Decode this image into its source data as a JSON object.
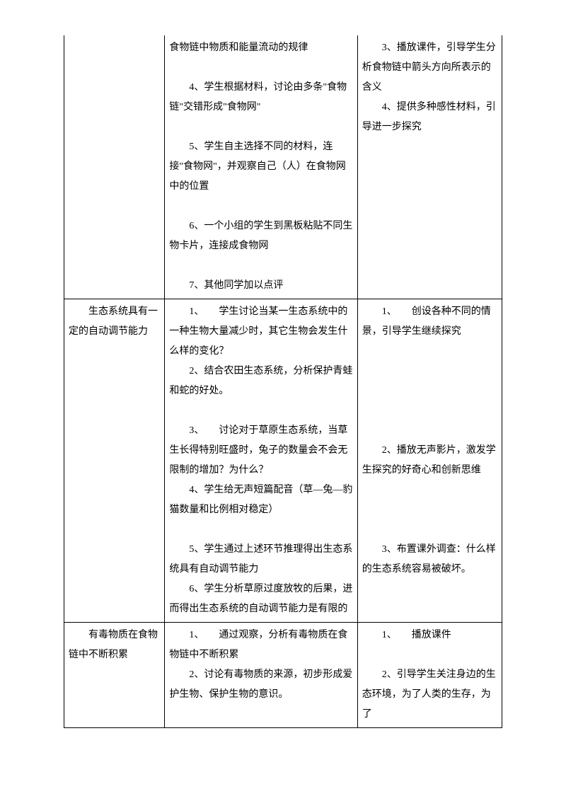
{
  "table": {
    "columns": [
      "col1",
      "col2",
      "col3"
    ],
    "rows": [
      {
        "c1": [
          ""
        ],
        "c2": [
          "食物链中物质和能量流动的规律",
          "",
          "4、学生根据材料，讨论由多条\"食物链\"交错形成\"食物网\"",
          "",
          "5、学生自主选择不同的材料，连接\"食物网\"，并观察自己（人）在食物网中的位置",
          "",
          "6、一个小组的学生到黑板粘贴不同生物卡片，连接成食物网",
          "",
          "7、其他同学加以点评"
        ],
        "c3": [
          "3、播放课件，引导学生分析食物链中箭头方向所表示的含义",
          "4、提供多种感性材料，引导进一步探究"
        ]
      },
      {
        "c1": [
          "生态系统具有一定的自动调节能力"
        ],
        "c2": [
          "1、　　学生讨论当某一生态系统中的一种生物大量减少时，其它生物会发生什么样的变化？",
          "2、结合农田生态系统，分析保护青蛙和蛇的好处。",
          "",
          "3、　　讨论对于草原生态系统，当草生长得特别旺盛时，兔子的数量会不会无限制的增加？为什么？",
          "4、学生给无声短篇配音（草—兔—豹猫数量和比例相对稳定）",
          "",
          "5、学生通过上述环节推理得出生态系统具有自动调节能力",
          "6、学生分析草原过度放牧的后果，进而得出生态系统的自动调节能力是有限的"
        ],
        "c3": [
          "1、　　创设各种不同的情景，引导学生继续探究",
          "",
          "",
          "",
          "",
          "",
          "2、播放无声影片，激发学生探究的好奇心和创新思维",
          "",
          "",
          "",
          "3、布置课外调查：什么样的生态系统容易被破坏。"
        ]
      },
      {
        "c1": [
          "有毒物质在食物链中不断积累"
        ],
        "c2": [
          "1、　　通过观察，分析有毒物质在食物链中不断积累",
          "2、讨论有毒物质的来源，初步形成爱护生物、保护生物的意识。"
        ],
        "c3": [
          "1、　　播放课件",
          "",
          "2、引导学生关注身边的生态环境，为了人类的生存，为了"
        ]
      }
    ]
  }
}
